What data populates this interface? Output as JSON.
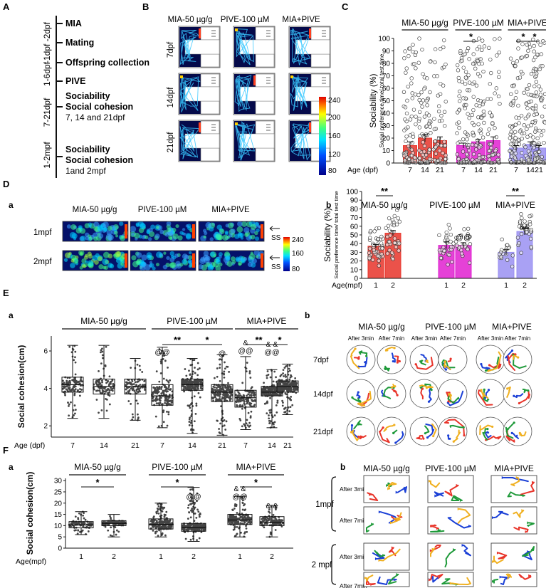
{
  "panel_letters": {
    "A": "A",
    "B": "B",
    "C": "C",
    "D": "D",
    "E": "E",
    "F": "F",
    "a": "a",
    "b": "b"
  },
  "panel_A": {
    "times": [
      "-1dpf -2dpf",
      "1-6dpf",
      "7-21dpf",
      "1-2mpf"
    ],
    "steps": [
      "MIA",
      "Mating",
      "Offspring collection",
      "PIVE",
      "Sociability",
      "Social cohesion",
      "7, 14 and 21dpf",
      "Sociability",
      "Social cohesion",
      "1and 2mpf"
    ]
  },
  "groups": [
    "MIA-50 µg/g",
    "PIVE-100 µM",
    "MIA+PIVE"
  ],
  "panel_B": {
    "rows": [
      "7dpf",
      "14dpf",
      "21dpf"
    ],
    "scale": [
      "240",
      "200",
      "160",
      "120",
      "80"
    ]
  },
  "panel_Da": {
    "rows": [
      "1mpf",
      "2mpf"
    ],
    "ss": "SS",
    "scale": [
      "240",
      "160",
      "80"
    ]
  },
  "panel_Eb": {
    "rows": [
      "7dpf",
      "14dpf",
      "21dpf"
    ],
    "cols": [
      "After 3min",
      "After 7min"
    ]
  },
  "panel_Fb": {
    "rows": [
      "1mpf",
      "2 mpf"
    ],
    "cols": [
      "After 3min",
      "After 7min"
    ]
  },
  "colors": {
    "red": "#e8342a",
    "magenta": "#e020d0",
    "lilac": "#9a90f2",
    "blue": "#1a3fd6",
    "green": "#1f9a3a",
    "orange": "#f0b020"
  },
  "chart_data": [
    {
      "id": "C",
      "type": "bar",
      "ylabel": "Sociability (%)",
      "ylabel2": "Social preference time/ total test time",
      "xlabel": "Age (dpf)",
      "ylim": [
        0,
        100
      ],
      "yticks": [
        0,
        10,
        20,
        30,
        40,
        50,
        60,
        70,
        80,
        90,
        100
      ],
      "categories": [
        "7",
        "14",
        "21",
        "7",
        "14",
        "21",
        "7",
        "14",
        "21"
      ],
      "groups": [
        {
          "name": "MIA-50 µg/g",
          "idx": [
            0,
            1,
            2
          ]
        },
        {
          "name": "PIVE-100 µM",
          "idx": [
            3,
            4,
            5
          ]
        },
        {
          "name": "MIA+PIVE",
          "idx": [
            6,
            7,
            8
          ]
        }
      ],
      "values": [
        14,
        20,
        18,
        14,
        17,
        18,
        12,
        15,
        12
      ],
      "errors": [
        3,
        3,
        3,
        2,
        2,
        3,
        2,
        2,
        2
      ],
      "colors": [
        "#e8342a",
        "#e8342a",
        "#e8342a",
        "#e020d0",
        "#e020d0",
        "#e020d0",
        "#9a90f2",
        "#9a90f2",
        "#9a90f2"
      ],
      "sig": [
        {
          "from": 3,
          "to": 4,
          "label": "*"
        },
        {
          "from": 6,
          "to": 7,
          "label": "*"
        },
        {
          "from": 7,
          "to": 8,
          "label": "*"
        }
      ]
    },
    {
      "id": "Db",
      "type": "bar",
      "ylabel": "Sociability (%)",
      "ylabel2": "Social preference time/ total test time",
      "xlabel": "Age(mpf)",
      "ylim": [
        0,
        100
      ],
      "yticks": [
        0,
        10,
        20,
        30,
        40,
        50,
        60,
        70,
        80,
        90,
        100
      ],
      "categories": [
        "1",
        "2",
        "1",
        "2",
        "1",
        "2"
      ],
      "groups": [
        {
          "name": "MIA-50 µg/g",
          "idx": [
            0,
            1
          ]
        },
        {
          "name": "PIVE-100 µM",
          "idx": [
            2,
            3
          ]
        },
        {
          "name": "MIA+PIVE",
          "idx": [
            4,
            5
          ]
        }
      ],
      "values": [
        37,
        52,
        38,
        38,
        30,
        54
      ],
      "errors": [
        2,
        3,
        4,
        3,
        3,
        4
      ],
      "colors": [
        "#e8342a",
        "#e8342a",
        "#e020d0",
        "#e020d0",
        "#9a90f2",
        "#9a90f2"
      ],
      "sig": [
        {
          "from": 0,
          "to": 1,
          "label": "**"
        },
        {
          "from": 4,
          "to": 5,
          "label": "**"
        }
      ],
      "annotations": [
        {
          "idx": 3,
          "label": "@@"
        },
        {
          "idx": 5,
          "label": "&&"
        }
      ]
    },
    {
      "id": "Ea",
      "type": "box",
      "ylabel": "Social cohesion(cm)",
      "xlabel": "Age (dpf)",
      "ylim": [
        1.4,
        6.8
      ],
      "yticks": [
        2,
        4,
        6
      ],
      "categories": [
        "7",
        "14",
        "21",
        "7",
        "14",
        "21",
        "7",
        "14",
        "21"
      ],
      "groups": [
        {
          "name": "MIA-50 µg/g",
          "idx": [
            0,
            1,
            2
          ]
        },
        {
          "name": "PIVE-100 µM",
          "idx": [
            3,
            4,
            5
          ]
        },
        {
          "name": "MIA+PIVE",
          "idx": [
            6,
            7,
            8
          ]
        }
      ],
      "boxes": [
        {
          "min": 2.4,
          "q1": 3.8,
          "median": 4.2,
          "q3": 4.6,
          "max": 6.3
        },
        {
          "min": 2.4,
          "q1": 3.7,
          "median": 4.1,
          "q3": 4.5,
          "max": 6.3
        },
        {
          "min": 2.3,
          "q1": 3.7,
          "median": 4.1,
          "q3": 4.5,
          "max": 5.6
        },
        {
          "min": 1.9,
          "q1": 3.1,
          "median": 3.6,
          "q3": 4.2,
          "max": 6.2
        },
        {
          "min": 1.6,
          "q1": 3.9,
          "median": 4.2,
          "q3": 4.5,
          "max": 5.6
        },
        {
          "min": 1.5,
          "q1": 3.3,
          "median": 3.8,
          "q3": 4.2,
          "max": 5.8
        },
        {
          "min": 1.8,
          "q1": 3.0,
          "median": 3.5,
          "q3": 3.9,
          "max": 5.7
        },
        {
          "min": 1.9,
          "q1": 3.6,
          "median": 3.8,
          "q3": 4.1,
          "max": 5.0
        },
        {
          "min": 2.6,
          "q1": 3.8,
          "median": 4.1,
          "q3": 4.4,
          "max": 5.3
        }
      ],
      "sig": [
        {
          "from": 3,
          "to": 4,
          "label": "**"
        },
        {
          "from": 4,
          "to": 5,
          "label": "*"
        },
        {
          "from": 6,
          "to": 7,
          "label": "**"
        },
        {
          "from": 7,
          "to": 8,
          "label": "*"
        }
      ],
      "annotations": [
        {
          "idx": 3,
          "label": "@@"
        },
        {
          "idx": 5,
          "label": "@"
        },
        {
          "idx": 6,
          "label": "@@"
        },
        {
          "idx": 6,
          "label": "&"
        },
        {
          "idx": 7,
          "label": "@@"
        },
        {
          "idx": 7,
          "label": "& &"
        }
      ]
    },
    {
      "id": "Fa",
      "type": "box",
      "ylabel": "Social cohesion(cm)",
      "xlabel": "Age(mpf)",
      "ylim": [
        0,
        31
      ],
      "yticks": [
        0,
        5,
        10,
        15,
        20,
        25,
        30
      ],
      "categories": [
        "1",
        "2",
        "1",
        "2",
        "1",
        "2"
      ],
      "groups": [
        {
          "name": "MIA-50 µg/g",
          "idx": [
            0,
            1
          ]
        },
        {
          "name": "PIVE-100 µM",
          "idx": [
            2,
            3
          ]
        },
        {
          "name": "MIA+PIVE",
          "idx": [
            4,
            5
          ]
        }
      ],
      "boxes": [
        {
          "min": 6.0,
          "q1": 9.0,
          "median": 10.3,
          "q3": 11.8,
          "max": 16.2
        },
        {
          "min": 5.0,
          "q1": 10.0,
          "median": 11.0,
          "q3": 12.2,
          "max": 15.0
        },
        {
          "min": 5.0,
          "q1": 8.5,
          "median": 10.5,
          "q3": 13.0,
          "max": 20.0
        },
        {
          "min": 3.0,
          "q1": 7.5,
          "median": 9.2,
          "q3": 11.0,
          "max": 27.0
        },
        {
          "min": 5.0,
          "q1": 10.5,
          "median": 12.5,
          "q3": 15.0,
          "max": 23.0
        },
        {
          "min": 5.0,
          "q1": 10.0,
          "median": 11.5,
          "q3": 14.0,
          "max": 19.0
        }
      ],
      "sig": [
        {
          "from": 0,
          "to": 1,
          "label": "*"
        },
        {
          "from": 2,
          "to": 3,
          "label": "*"
        },
        {
          "from": 4,
          "to": 5,
          "label": "*"
        }
      ],
      "annotations": [
        {
          "idx": 3,
          "label": "@@"
        },
        {
          "idx": 4,
          "label": "@@"
        },
        {
          "idx": 4,
          "label": "& &"
        },
        {
          "idx": 5,
          "label": "& &"
        }
      ]
    }
  ]
}
